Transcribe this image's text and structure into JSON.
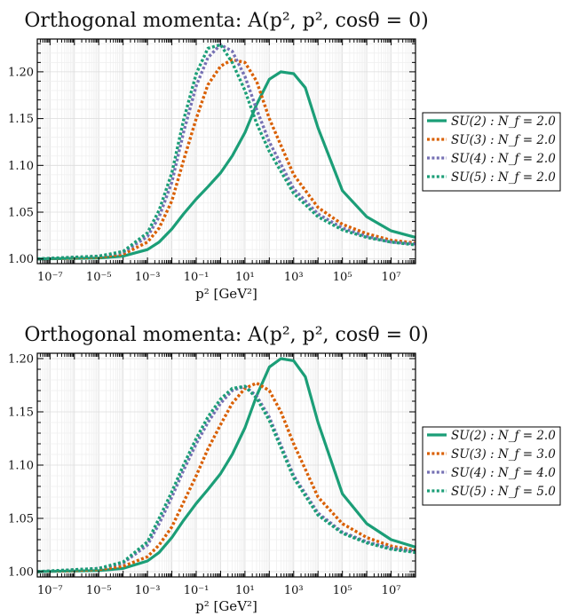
{
  "chart_data": [
    {
      "type": "line",
      "title": "Orthogonal momenta: A(p², p², cosθ = 0)",
      "xlabel": "p² [GeV²]",
      "ylabel": "",
      "x_scale": "log",
      "xlim": [
        3e-08,
        100000000.0
      ],
      "ylim": [
        0.995,
        1.235
      ],
      "x_tick_labels": [
        "10⁻⁷",
        "10⁻⁵",
        "10⁻³",
        "10⁻¹",
        "10¹",
        "10³",
        "10⁵",
        "10⁷"
      ],
      "y_ticks": [
        1.0,
        1.05,
        1.1,
        1.15,
        1.2
      ],
      "y_tick_labels": [
        "1.00",
        "1.05",
        "1.10",
        "1.15",
        "1.20"
      ],
      "grid": true,
      "legend_placement": "outside right",
      "series": [
        {
          "name": "SU(2) : N_f = 2.0",
          "style": "solid",
          "color": "#1b9e77",
          "x": [
            3e-08,
            1e-05,
            0.0001,
            0.001,
            0.003,
            0.01,
            0.03,
            0.1,
            0.3,
            1,
            3,
            10,
            30,
            100,
            300,
            1000,
            3000,
            10000.0,
            100000.0,
            1000000.0,
            10000000.0,
            100000000.0
          ],
          "y": [
            1.0,
            1.001,
            1.003,
            1.01,
            1.018,
            1.032,
            1.048,
            1.064,
            1.077,
            1.092,
            1.11,
            1.135,
            1.165,
            1.192,
            1.2,
            1.198,
            1.183,
            1.14,
            1.073,
            1.045,
            1.03,
            1.023
          ]
        },
        {
          "name": "SU(3) : N_f = 2.0",
          "style": "dotted",
          "color": "#d95f02",
          "x": [
            3e-08,
            1e-05,
            0.0001,
            0.001,
            0.003,
            0.01,
            0.03,
            0.1,
            0.3,
            1,
            3,
            10,
            30,
            100,
            1000,
            10000.0,
            100000.0,
            1000000.0,
            10000000.0,
            100000000.0
          ],
          "y": [
            1.0,
            1.002,
            1.005,
            1.018,
            1.033,
            1.062,
            1.105,
            1.15,
            1.186,
            1.206,
            1.213,
            1.21,
            1.19,
            1.15,
            1.09,
            1.055,
            1.037,
            1.027,
            1.02,
            1.017
          ]
        },
        {
          "name": "SU(4) : N_f = 2.0",
          "style": "dotted",
          "color": "#7570b3",
          "x": [
            3e-08,
            1e-05,
            0.0001,
            0.001,
            0.003,
            0.01,
            0.03,
            0.1,
            0.3,
            1,
            3,
            10,
            30,
            100,
            1000,
            10000.0,
            100000.0,
            1000000.0,
            10000000.0,
            100000000.0
          ],
          "y": [
            1.0,
            1.003,
            1.007,
            1.024,
            1.045,
            1.082,
            1.135,
            1.185,
            1.215,
            1.229,
            1.222,
            1.195,
            1.16,
            1.125,
            1.075,
            1.048,
            1.033,
            1.024,
            1.018,
            1.016
          ]
        },
        {
          "name": "SU(5) : N_f = 2.0",
          "style": "dotted",
          "color": "#1b9e77",
          "x": [
            3e-08,
            1e-05,
            0.0001,
            0.001,
            0.003,
            0.01,
            0.03,
            0.1,
            0.3,
            1,
            3,
            10,
            30,
            100,
            1000,
            10000.0,
            100000.0,
            1000000.0,
            10000000.0,
            100000000.0
          ],
          "y": [
            1.0,
            1.003,
            1.008,
            1.028,
            1.052,
            1.092,
            1.148,
            1.198,
            1.225,
            1.229,
            1.21,
            1.18,
            1.145,
            1.115,
            1.07,
            1.045,
            1.031,
            1.023,
            1.018,
            1.015
          ]
        }
      ]
    },
    {
      "type": "line",
      "title": "Orthogonal momenta: A(p², p², cosθ = 0)",
      "xlabel": "p² [GeV²]",
      "ylabel": "",
      "x_scale": "log",
      "xlim": [
        3e-08,
        100000000.0
      ],
      "ylim": [
        0.995,
        1.205
      ],
      "x_tick_labels": [
        "10⁻⁷",
        "10⁻⁵",
        "10⁻³",
        "10⁻¹",
        "10¹",
        "10³",
        "10⁵",
        "10⁷"
      ],
      "y_ticks": [
        1.0,
        1.05,
        1.1,
        1.15,
        1.2
      ],
      "y_tick_labels": [
        "1.00",
        "1.05",
        "1.10",
        "1.15",
        "1.20"
      ],
      "grid": true,
      "legend_placement": "outside right",
      "series": [
        {
          "name": "SU(2) : N_f = 2.0",
          "style": "solid",
          "color": "#1b9e77",
          "x": [
            3e-08,
            1e-05,
            0.0001,
            0.001,
            0.003,
            0.01,
            0.03,
            0.1,
            0.3,
            1,
            3,
            10,
            30,
            100,
            300,
            1000,
            3000,
            10000.0,
            100000.0,
            1000000.0,
            10000000.0,
            100000000.0
          ],
          "y": [
            1.0,
            1.001,
            1.003,
            1.01,
            1.018,
            1.032,
            1.048,
            1.064,
            1.077,
            1.092,
            1.11,
            1.135,
            1.165,
            1.192,
            1.2,
            1.198,
            1.183,
            1.14,
            1.073,
            1.045,
            1.03,
            1.023
          ]
        },
        {
          "name": "SU(3) : N_f = 3.0",
          "style": "dotted",
          "color": "#d95f02",
          "x": [
            3e-08,
            1e-05,
            0.0001,
            0.001,
            0.003,
            0.01,
            0.03,
            0.1,
            0.3,
            1,
            3,
            10,
            30,
            100,
            300,
            1000,
            10000.0,
            100000.0,
            1000000.0,
            10000000.0,
            100000000.0
          ],
          "y": [
            1.0,
            1.002,
            1.005,
            1.014,
            1.025,
            1.042,
            1.065,
            1.09,
            1.115,
            1.138,
            1.158,
            1.172,
            1.177,
            1.17,
            1.15,
            1.12,
            1.07,
            1.045,
            1.032,
            1.024,
            1.02
          ]
        },
        {
          "name": "SU(4) : N_f = 4.0",
          "style": "dotted",
          "color": "#7570b3",
          "x": [
            3e-08,
            1e-05,
            0.0001,
            0.001,
            0.003,
            0.01,
            0.03,
            0.1,
            0.3,
            1,
            3,
            10,
            30,
            100,
            1000,
            10000.0,
            100000.0,
            1000000.0,
            10000000.0,
            100000000.0
          ],
          "y": [
            1.0,
            1.003,
            1.008,
            1.025,
            1.045,
            1.07,
            1.095,
            1.12,
            1.14,
            1.158,
            1.17,
            1.174,
            1.165,
            1.145,
            1.09,
            1.055,
            1.037,
            1.028,
            1.022,
            1.019
          ]
        },
        {
          "name": "SU(5) : N_f = 5.0",
          "style": "dotted",
          "color": "#1b9e77",
          "x": [
            3e-08,
            1e-05,
            0.0001,
            0.001,
            0.003,
            0.01,
            0.03,
            0.1,
            0.3,
            1,
            3,
            10,
            30,
            100,
            1000,
            10000.0,
            100000.0,
            1000000.0,
            10000000.0,
            100000000.0
          ],
          "y": [
            1.0,
            1.003,
            1.009,
            1.028,
            1.05,
            1.075,
            1.1,
            1.125,
            1.145,
            1.162,
            1.172,
            1.174,
            1.163,
            1.142,
            1.088,
            1.053,
            1.036,
            1.027,
            1.021,
            1.018
          ]
        }
      ]
    }
  ]
}
